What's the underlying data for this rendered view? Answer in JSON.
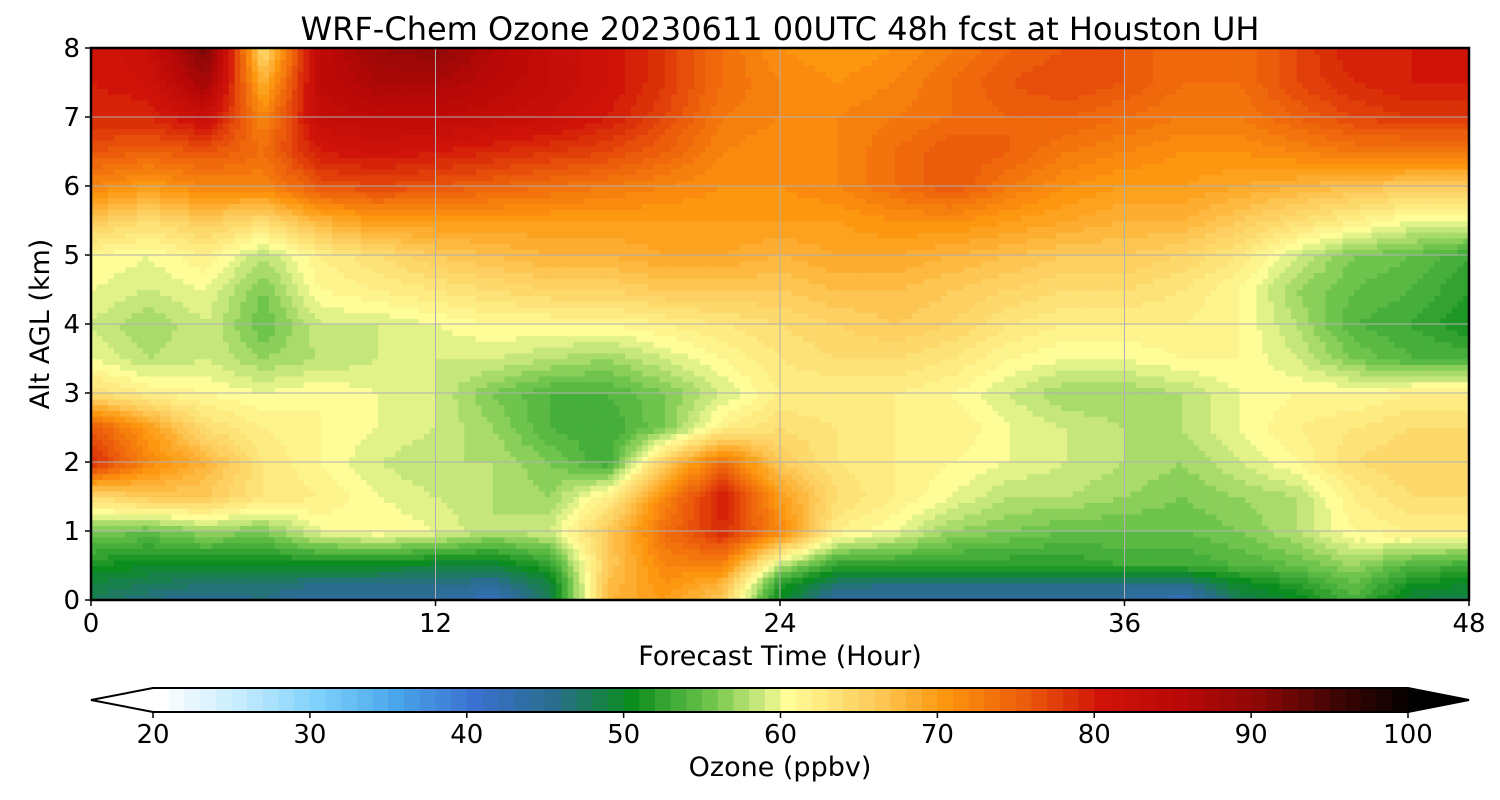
{
  "chart_data": {
    "type": "heatmap",
    "title": "WRF-Chem Ozone  20230611 00UTC 48h fcst at Houston UH",
    "xlabel": "Forecast Time (Hour)",
    "ylabel": "Alt AGL (km)",
    "xlim": [
      0,
      48
    ],
    "ylim": [
      0,
      8
    ],
    "xticks": [
      0,
      12,
      24,
      36,
      48
    ],
    "yticks": [
      0,
      1,
      2,
      3,
      4,
      5,
      6,
      7,
      8
    ],
    "grid": true,
    "x": [
      0,
      2,
      4,
      6,
      8,
      10,
      12,
      14,
      16,
      18,
      20,
      22,
      24,
      26,
      28,
      30,
      32,
      34,
      36,
      38,
      40,
      42,
      44,
      46,
      48
    ],
    "y": [
      0,
      0.25,
      0.5,
      1,
      1.5,
      2,
      2.5,
      3,
      3.5,
      4,
      4.5,
      5,
      5.5,
      6,
      6.5,
      7,
      7.5,
      8
    ],
    "z": [
      [
        48,
        46,
        45,
        46,
        44,
        44,
        44,
        42,
        48,
        68,
        70,
        66,
        50,
        44,
        44,
        44,
        44,
        44,
        44,
        42,
        48,
        50,
        54,
        49,
        48
      ],
      [
        49,
        48,
        47,
        47,
        46,
        46,
        46,
        45,
        49,
        67,
        71,
        68,
        52,
        47,
        46,
        46,
        46,
        46,
        46,
        46,
        50,
        52,
        55,
        51,
        50
      ],
      [
        51,
        50,
        50,
        50,
        50,
        50,
        49,
        49,
        52,
        66,
        72,
        72,
        58,
        52,
        52,
        52,
        52,
        52,
        53,
        53,
        54,
        55,
        57,
        54,
        53
      ],
      [
        56,
        55,
        57,
        56,
        60,
        61,
        60,
        58,
        59,
        66,
        74,
        79,
        72,
        62,
        60,
        57,
        56,
        55,
        55,
        55,
        56,
        58,
        61,
        62,
        62
      ],
      [
        64,
        66,
        66,
        63,
        62,
        60,
        59,
        58,
        57,
        62,
        72,
        80,
        70,
        64,
        62,
        60,
        58,
        58,
        57,
        56,
        57,
        58,
        62,
        64,
        64
      ],
      [
        79,
        72,
        68,
        63,
        61,
        59,
        58,
        58,
        56,
        53,
        66,
        74,
        66,
        63,
        62,
        61,
        60,
        59,
        58,
        57,
        59,
        61,
        64,
        65,
        65
      ],
      [
        76,
        70,
        64,
        62,
        61,
        60,
        59,
        57,
        54,
        53,
        56,
        62,
        64,
        63,
        62,
        62,
        60,
        59,
        58,
        58,
        60,
        62,
        63,
        64,
        64
      ],
      [
        64,
        62,
        61,
        60,
        61,
        60,
        59,
        56,
        54,
        54,
        56,
        59,
        62,
        62,
        62,
        61,
        59,
        57,
        57,
        58,
        60,
        61,
        61,
        62,
        62
      ],
      [
        60,
        58,
        59,
        57,
        58,
        59,
        59,
        59,
        58,
        57,
        59,
        61,
        63,
        64,
        64,
        63,
        61,
        60,
        60,
        61,
        61,
        59,
        56,
        54,
        54
      ],
      [
        59,
        57,
        59,
        55,
        59,
        59,
        60,
        61,
        61,
        61,
        62,
        63,
        64,
        65,
        66,
        65,
        63,
        62,
        62,
        62,
        61,
        58,
        54,
        53,
        51
      ],
      [
        60,
        59,
        60,
        56,
        61,
        62,
        63,
        64,
        65,
        65,
        66,
        66,
        66,
        67,
        67,
        66,
        65,
        64,
        64,
        63,
        61,
        57,
        55,
        54,
        52
      ],
      [
        61,
        60,
        62,
        58,
        62,
        64,
        66,
        67,
        68,
        68,
        69,
        69,
        68,
        69,
        69,
        68,
        67,
        66,
        66,
        65,
        63,
        59,
        56,
        55,
        53
      ],
      [
        66,
        64,
        66,
        64,
        68,
        70,
        70,
        70,
        70,
        70,
        70,
        70,
        70,
        70,
        71,
        71,
        70,
        69,
        68,
        68,
        66,
        64,
        62,
        60,
        60
      ],
      [
        72,
        70,
        72,
        72,
        76,
        77,
        76,
        75,
        74,
        73,
        72,
        71,
        71,
        72,
        74,
        76,
        73,
        71,
        70,
        70,
        69,
        68,
        67,
        66,
        66
      ],
      [
        76,
        75,
        76,
        74,
        80,
        81,
        80,
        79,
        78,
        77,
        75,
        72,
        71,
        72,
        74,
        76,
        75,
        73,
        72,
        71,
        71,
        72,
        73,
        73,
        73
      ],
      [
        79,
        79,
        82,
        72,
        83,
        84,
        84,
        83,
        82,
        80,
        77,
        73,
        72,
        72,
        73,
        74,
        75,
        75,
        74,
        73,
        73,
        75,
        77,
        78,
        78
      ],
      [
        80,
        81,
        88,
        68,
        84,
        87,
        87,
        85,
        83,
        81,
        78,
        74,
        72,
        71,
        72,
        74,
        76,
        77,
        76,
        74,
        74,
        77,
        79,
        80,
        80
      ],
      [
        80,
        82,
        92,
        64,
        84,
        89,
        90,
        86,
        83,
        81,
        78,
        74,
        71,
        70,
        71,
        73,
        75,
        76,
        76,
        74,
        74,
        77,
        80,
        80,
        80
      ]
    ],
    "colorbar": {
      "label": "Ozone  (ppbv)",
      "min": 20,
      "max": 100,
      "step": 1,
      "ticks": [
        20,
        30,
        40,
        50,
        60,
        70,
        80,
        90,
        100
      ],
      "extend": "both",
      "colormap": [
        [
          20,
          "#ffffff"
        ],
        [
          25,
          "#c6ecfd"
        ],
        [
          30,
          "#7fd0fa"
        ],
        [
          35,
          "#4aa6ea"
        ],
        [
          40,
          "#3a70cf"
        ],
        [
          45,
          "#2a6d8e"
        ],
        [
          50,
          "#0b8c1e"
        ],
        [
          55,
          "#6ec44c"
        ],
        [
          60,
          "#fefd98"
        ],
        [
          65,
          "#fdd061"
        ],
        [
          70,
          "#fd970f"
        ],
        [
          75,
          "#ec5d0b"
        ],
        [
          80,
          "#d01308"
        ],
        [
          85,
          "#b80807"
        ],
        [
          90,
          "#8c0807"
        ],
        [
          95,
          "#3d0504"
        ],
        [
          100,
          "#000000"
        ]
      ]
    }
  }
}
